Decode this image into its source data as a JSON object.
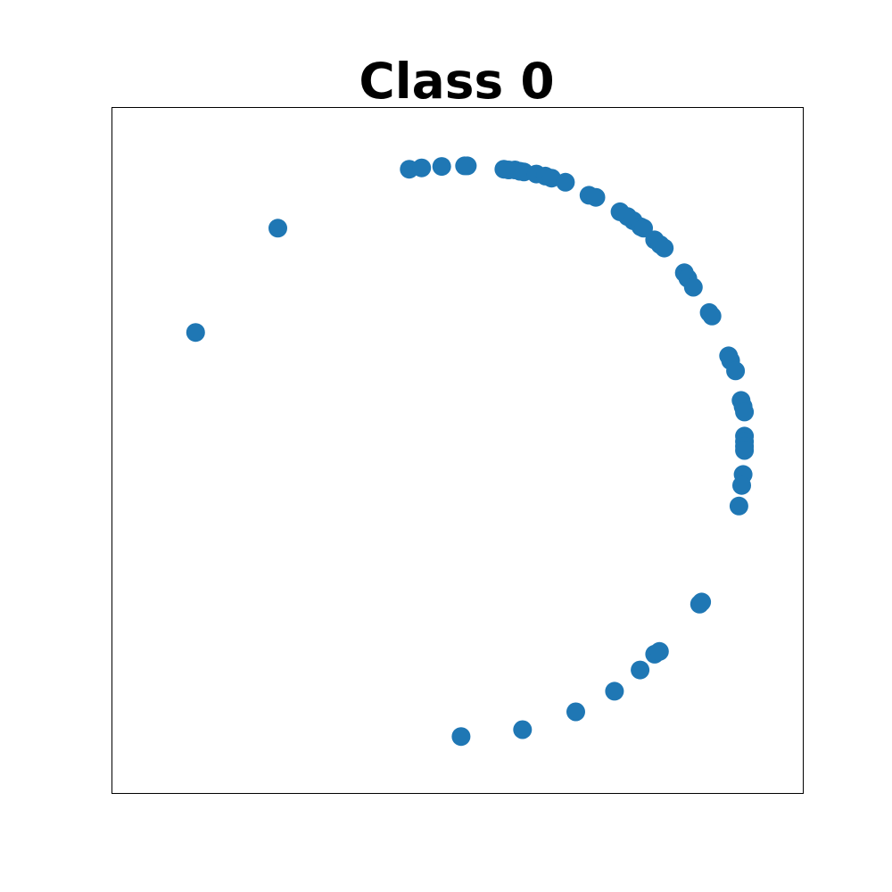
{
  "chart_data": {
    "type": "scatter",
    "title": "Class 0",
    "xlabel": "",
    "ylabel": "",
    "xlim": [
      0,
      100
    ],
    "ylim": [
      0,
      100
    ],
    "grid": false,
    "axis_ticks": false,
    "marker_color": "#1f77b4",
    "series": [
      {
        "points": [
          [
            12.1,
            67.2
          ],
          [
            24.0,
            82.4
          ],
          [
            43.0,
            91.0
          ],
          [
            44.8,
            91.2
          ],
          [
            47.7,
            91.4
          ],
          [
            51.0,
            91.5
          ],
          [
            51.4,
            91.5
          ],
          [
            56.7,
            91.0
          ],
          [
            57.4,
            90.9
          ],
          [
            58.3,
            90.9
          ],
          [
            59.0,
            90.7
          ],
          [
            59.6,
            90.6
          ],
          [
            61.4,
            90.3
          ],
          [
            62.7,
            90.0
          ],
          [
            63.6,
            89.7
          ],
          [
            65.6,
            89.1
          ],
          [
            69.0,
            87.2
          ],
          [
            70.0,
            86.9
          ],
          [
            73.5,
            84.8
          ],
          [
            74.6,
            84.1
          ],
          [
            75.4,
            83.5
          ],
          [
            76.5,
            82.6
          ],
          [
            76.9,
            82.4
          ],
          [
            78.5,
            80.7
          ],
          [
            79.3,
            80.0
          ],
          [
            79.9,
            79.5
          ],
          [
            82.8,
            75.9
          ],
          [
            83.3,
            75.1
          ],
          [
            84.1,
            73.8
          ],
          [
            86.4,
            70.1
          ],
          [
            86.8,
            69.6
          ],
          [
            89.2,
            63.8
          ],
          [
            89.5,
            63.1
          ],
          [
            90.2,
            61.6
          ],
          [
            91.0,
            57.3
          ],
          [
            91.3,
            56.4
          ],
          [
            91.5,
            55.6
          ],
          [
            91.5,
            52.1
          ],
          [
            91.5,
            51.3
          ],
          [
            91.5,
            50.6
          ],
          [
            91.5,
            50.0
          ],
          [
            91.3,
            46.5
          ],
          [
            91.1,
            44.9
          ],
          [
            90.7,
            41.9
          ],
          [
            85.0,
            27.6
          ],
          [
            85.3,
            27.9
          ],
          [
            78.5,
            20.3
          ],
          [
            79.2,
            20.7
          ],
          [
            76.4,
            18.0
          ],
          [
            72.7,
            14.9
          ],
          [
            67.1,
            11.9
          ],
          [
            59.4,
            9.3
          ],
          [
            50.5,
            8.3
          ]
        ]
      }
    ]
  }
}
